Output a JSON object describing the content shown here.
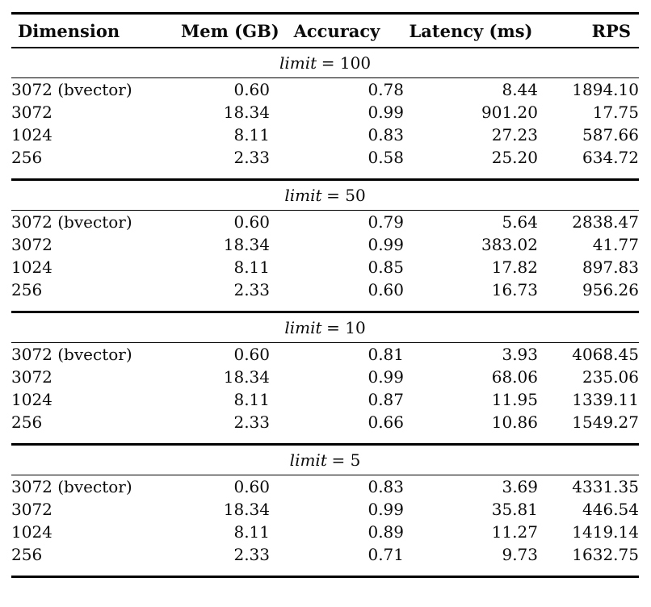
{
  "table": {
    "columns": [
      "Dimension",
      "Mem (GB)",
      "Accuracy",
      "Latency (ms)",
      "RPS"
    ],
    "sections": [
      {
        "limit_word": "limit",
        "limit_rest": "= 100",
        "rows": [
          {
            "dimension": "3072 (bvector)",
            "mem": "0.60",
            "accuracy": "0.78",
            "latency": "8.44",
            "rps": "1894.10"
          },
          {
            "dimension": "3072",
            "mem": "18.34",
            "accuracy": "0.99",
            "latency": "901.20",
            "rps": "17.75"
          },
          {
            "dimension": "1024",
            "mem": "8.11",
            "accuracy": "0.83",
            "latency": "27.23",
            "rps": "587.66"
          },
          {
            "dimension": "256",
            "mem": "2.33",
            "accuracy": "0.58",
            "latency": "25.20",
            "rps": "634.72"
          }
        ]
      },
      {
        "limit_word": "limit",
        "limit_rest": "= 50",
        "rows": [
          {
            "dimension": "3072 (bvector)",
            "mem": "0.60",
            "accuracy": "0.79",
            "latency": "5.64",
            "rps": "2838.47"
          },
          {
            "dimension": "3072",
            "mem": "18.34",
            "accuracy": "0.99",
            "latency": "383.02",
            "rps": "41.77"
          },
          {
            "dimension": "1024",
            "mem": "8.11",
            "accuracy": "0.85",
            "latency": "17.82",
            "rps": "897.83"
          },
          {
            "dimension": "256",
            "mem": "2.33",
            "accuracy": "0.60",
            "latency": "16.73",
            "rps": "956.26"
          }
        ]
      },
      {
        "limit_word": "limit",
        "limit_rest": "= 10",
        "rows": [
          {
            "dimension": "3072 (bvector)",
            "mem": "0.60",
            "accuracy": "0.81",
            "latency": "3.93",
            "rps": "4068.45"
          },
          {
            "dimension": "3072",
            "mem": "18.34",
            "accuracy": "0.99",
            "latency": "68.06",
            "rps": "235.06"
          },
          {
            "dimension": "1024",
            "mem": "8.11",
            "accuracy": "0.87",
            "latency": "11.95",
            "rps": "1339.11"
          },
          {
            "dimension": "256",
            "mem": "2.33",
            "accuracy": "0.66",
            "latency": "10.86",
            "rps": "1549.27"
          }
        ]
      },
      {
        "limit_word": "limit",
        "limit_rest": "= 5",
        "rows": [
          {
            "dimension": "3072 (bvector)",
            "mem": "0.60",
            "accuracy": "0.83",
            "latency": "3.69",
            "rps": "4331.35"
          },
          {
            "dimension": "3072",
            "mem": "18.34",
            "accuracy": "0.99",
            "latency": "35.81",
            "rps": "446.54"
          },
          {
            "dimension": "1024",
            "mem": "8.11",
            "accuracy": "0.89",
            "latency": "11.27",
            "rps": "1419.14"
          },
          {
            "dimension": "256",
            "mem": "2.33",
            "accuracy": "0.71",
            "latency": "9.73",
            "rps": "1632.75"
          }
        ]
      }
    ]
  },
  "colors": {
    "text": "#0a0a0a",
    "rule": "#000000",
    "background": "#ffffff"
  }
}
